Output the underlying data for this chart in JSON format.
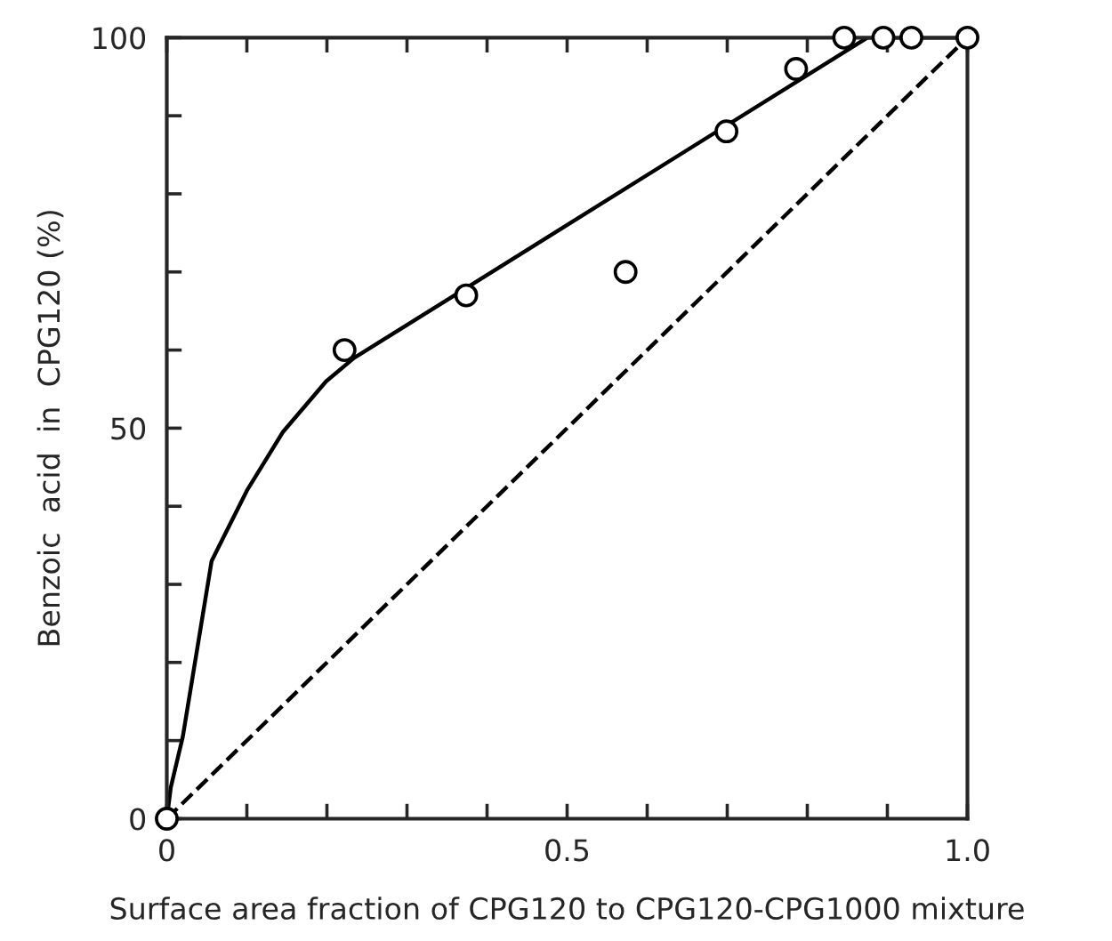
{
  "chart_data": {
    "type": "scatter",
    "xlabel": "Surface area fraction of CPG120 to CPG120-CPG1000 mixture",
    "ylabel": "Benzoic  acid  in  CPG120 (%)",
    "xlim": [
      0,
      1
    ],
    "ylim": [
      0,
      100
    ],
    "xticks": [
      0,
      {
        "value": 0.1,
        "label": null
      },
      {
        "value": 0.2,
        "label": null
      },
      {
        "value": 0.3,
        "label": null
      },
      {
        "value": 0.4,
        "label": null
      },
      0.5,
      {
        "value": 0.6,
        "label": null
      },
      {
        "value": 0.7,
        "label": null
      },
      {
        "value": 0.8,
        "label": null
      },
      {
        "value": 0.9,
        "label": null
      },
      {
        "value": 1,
        "label": "1.0"
      }
    ],
    "yticks": [
      0,
      {
        "value": 10,
        "label": null
      },
      {
        "value": 20,
        "label": null
      },
      {
        "value": 30,
        "label": null
      },
      {
        "value": 40,
        "label": null
      },
      50,
      {
        "value": 60,
        "label": null
      },
      {
        "value": 70,
        "label": null
      },
      {
        "value": 80,
        "label": null
      },
      {
        "value": 90,
        "label": null
      },
      100
    ],
    "grid": false,
    "legend": false,
    "series": [
      {
        "marker": "circle",
        "color": "#000000",
        "x": [
          0,
          0.222,
          0.374,
          0.573,
          0.699,
          0.786,
          0.846,
          0.895,
          0.93,
          1
        ],
        "values": [
          0,
          60,
          67,
          70,
          88,
          96,
          100,
          100,
          100,
          100
        ]
      },
      {
        "type": "line",
        "marker": "none",
        "line_style": "solid",
        "color": "#000000",
        "x": [
          0,
          0.005,
          0.02,
          0.056,
          0.1,
          0.145,
          0.199,
          0.234,
          0.875,
          1
        ],
        "values": [
          0,
          4,
          10.5,
          33,
          42,
          49.5,
          56,
          59,
          100,
          100
        ]
      },
      {
        "type": "line",
        "marker": "none",
        "line_style": "dashed",
        "color": "#000000",
        "x": [
          0,
          1
        ],
        "values": [
          0,
          100
        ]
      }
    ]
  }
}
